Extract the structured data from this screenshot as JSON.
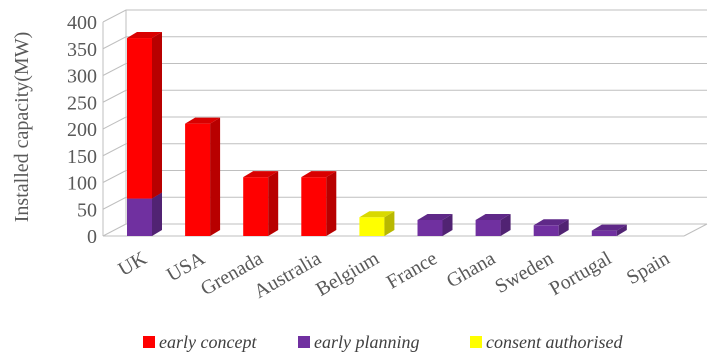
{
  "chart_data": {
    "type": "bar",
    "stacked": true,
    "three_d": true,
    "title": "",
    "xlabel": "",
    "ylabel": "Installed capacity(MW)",
    "ylim": [
      0,
      400
    ],
    "yticks": [
      0,
      50,
      100,
      150,
      200,
      250,
      300,
      350,
      400
    ],
    "grid": true,
    "legend_position": "bottom",
    "categories": [
      "UK",
      "USA",
      "Grenada",
      "Australia",
      "Belgium",
      "France",
      "Ghana",
      "Sweden",
      "Portugal",
      "Spain"
    ],
    "series": [
      {
        "name": "early planning",
        "color": "#7030A0",
        "values": [
          70,
          0,
          0,
          0,
          0,
          30,
          30,
          20,
          10,
          0
        ]
      },
      {
        "name": "early concept",
        "color": "#FF0000",
        "values": [
          300,
          210,
          110,
          110,
          0,
          0,
          0,
          0,
          0,
          0
        ]
      },
      {
        "name": "consent authorised",
        "color": "#FFFF00",
        "values": [
          0,
          0,
          0,
          0,
          35,
          0,
          0,
          0,
          0,
          0
        ]
      }
    ],
    "legend": [
      {
        "name": "early concept",
        "color": "#FF0000"
      },
      {
        "name": "early planning",
        "color": "#7030A0"
      },
      {
        "name": "consent authorised",
        "color": "#FFFF00"
      }
    ]
  }
}
